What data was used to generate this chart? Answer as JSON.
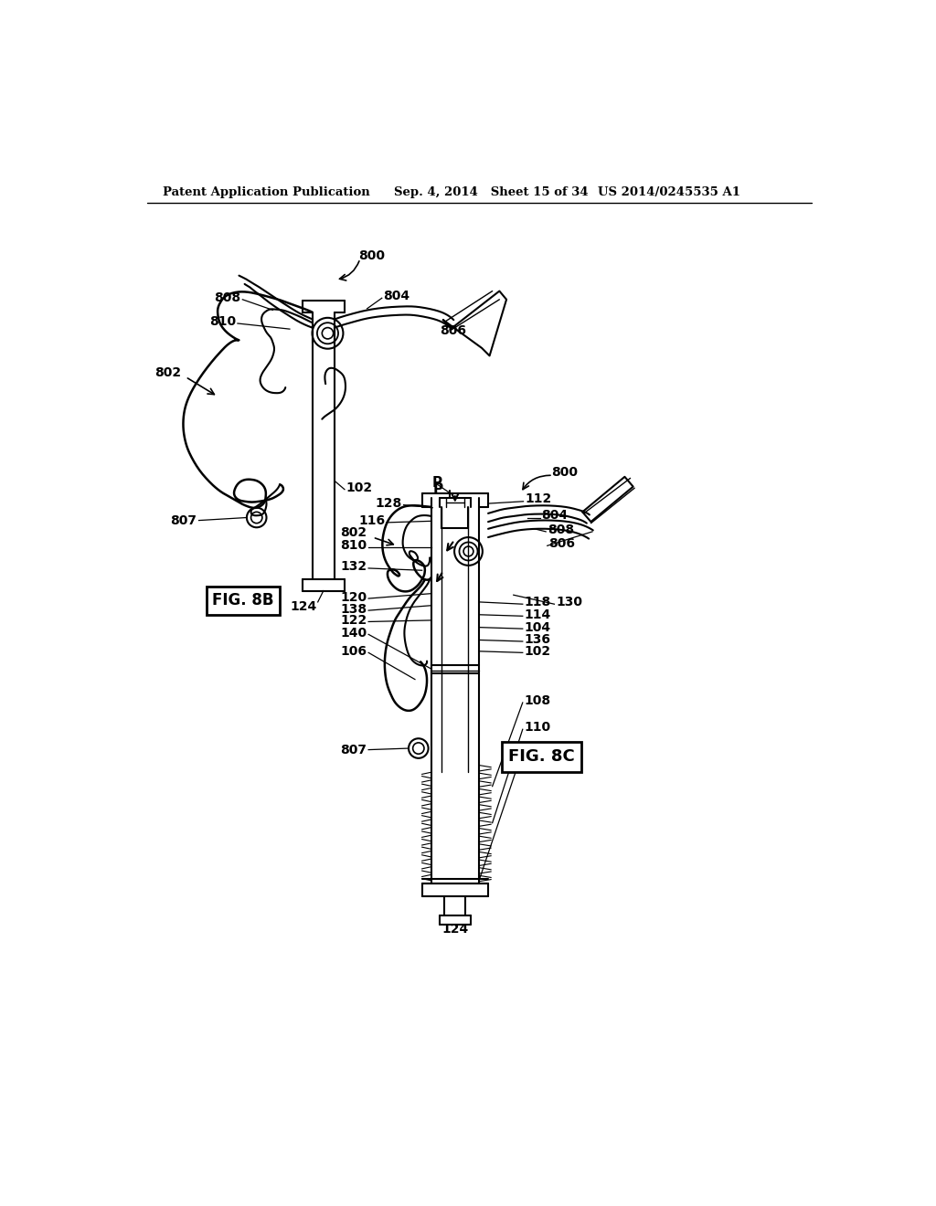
{
  "bg_color": "#ffffff",
  "header_left": "Patent Application Publication",
  "header_mid": "Sep. 4, 2014   Sheet 15 of 34",
  "header_right": "US 2014/0245535 A1"
}
